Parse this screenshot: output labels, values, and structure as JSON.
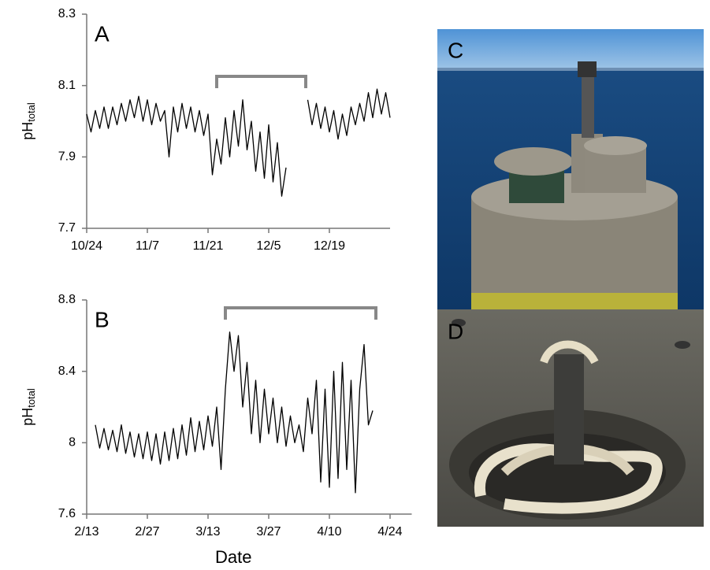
{
  "chart_data": [
    {
      "type": "line",
      "panel_label": "A",
      "ylabel": "pH",
      "ylabel_subscript": "total",
      "color": "#000000",
      "xlim": [
        0,
        70
      ],
      "ylim": [
        7.7,
        8.3
      ],
      "xticks": [
        {
          "value": 0,
          "label": "10/24"
        },
        {
          "value": 14,
          "label": "11/7"
        },
        {
          "value": 28,
          "label": "11/21"
        },
        {
          "value": 42,
          "label": "12/5"
        },
        {
          "value": 56,
          "label": "12/19"
        }
      ],
      "yticks": [
        7.7,
        7.9,
        8.1,
        8.3
      ],
      "x": [
        0,
        1,
        2,
        3,
        4,
        5,
        6,
        7,
        8,
        9,
        10,
        11,
        12,
        13,
        14,
        15,
        16,
        17,
        18,
        19,
        20,
        21,
        22,
        23,
        24,
        25,
        26,
        27,
        28,
        29,
        30,
        31,
        32,
        33,
        34,
        35,
        36,
        37,
        38,
        39,
        40,
        41,
        42,
        43,
        44,
        45,
        46,
        47,
        48,
        49,
        50,
        51,
        52,
        53,
        54,
        55,
        56,
        57,
        58,
        59,
        60,
        61,
        62,
        63,
        64,
        65,
        66,
        67,
        68,
        69,
        70
      ],
      "values": [
        8.02,
        7.97,
        8.03,
        7.98,
        8.04,
        7.98,
        8.04,
        7.99,
        8.05,
        8.0,
        8.06,
        8.01,
        8.07,
        8.0,
        8.06,
        7.99,
        8.05,
        8.0,
        8.03,
        7.9,
        8.04,
        7.97,
        8.05,
        7.98,
        8.04,
        7.97,
        8.03,
        7.96,
        8.02,
        7.85,
        7.95,
        7.88,
        8.01,
        7.9,
        8.03,
        7.93,
        8.06,
        7.92,
        8.0,
        7.86,
        7.97,
        7.84,
        7.99,
        7.83,
        7.94,
        7.79,
        7.87,
        null,
        null,
        null,
        null,
        8.06,
        7.99,
        8.05,
        7.98,
        8.04,
        7.97,
        8.03,
        7.95,
        8.02,
        7.96,
        8.04,
        7.99,
        8.05,
        8.0,
        8.08,
        8.01,
        8.09,
        8.02,
        8.08,
        8.01
      ]
    },
    {
      "type": "line",
      "panel_label": "B",
      "ylabel": "pH",
      "ylabel_subscript": "total",
      "xlabel": "Date",
      "color": "#000000",
      "xlim": [
        0,
        75
      ],
      "ylim": [
        7.6,
        8.8
      ],
      "xticks": [
        {
          "value": 0,
          "label": "2/13"
        },
        {
          "value": 14,
          "label": "2/27"
        },
        {
          "value": 28,
          "label": "3/13"
        },
        {
          "value": 42,
          "label": "3/27"
        },
        {
          "value": 56,
          "label": "4/10"
        },
        {
          "value": 70,
          "label": "4/24"
        }
      ],
      "yticks": [
        7.6,
        8,
        8.4,
        8.8
      ],
      "x": [
        2,
        3,
        4,
        5,
        6,
        7,
        8,
        9,
        10,
        11,
        12,
        13,
        14,
        15,
        16,
        17,
        18,
        19,
        20,
        21,
        22,
        23,
        24,
        25,
        26,
        27,
        28,
        29,
        30,
        31,
        32,
        33,
        34,
        35,
        36,
        37,
        38,
        39,
        40,
        41,
        42,
        43,
        44,
        45,
        46,
        47,
        48,
        49,
        50,
        51,
        52,
        53,
        54,
        55,
        56,
        57,
        58,
        59,
        60,
        61,
        62,
        63,
        64,
        65,
        66
      ],
      "values": [
        8.1,
        7.97,
        8.08,
        7.96,
        8.07,
        7.95,
        8.1,
        7.94,
        8.06,
        7.92,
        8.05,
        7.91,
        8.06,
        7.9,
        8.05,
        7.88,
        8.06,
        7.9,
        8.08,
        7.91,
        8.1,
        7.93,
        8.14,
        7.95,
        8.12,
        7.96,
        8.15,
        7.98,
        8.2,
        7.85,
        8.3,
        8.62,
        8.4,
        8.6,
        8.2,
        8.45,
        8.05,
        8.35,
        8.0,
        8.3,
        8.05,
        8.25,
        8.0,
        8.2,
        7.98,
        8.15,
        8.0,
        8.1,
        7.95,
        8.25,
        8.05,
        8.35,
        7.78,
        8.3,
        7.75,
        8.4,
        7.8,
        8.45,
        7.85,
        8.35,
        7.72,
        8.3,
        8.55,
        8.1,
        8.18
      ]
    }
  ],
  "photos": [
    {
      "label": "C"
    },
    {
      "label": "D"
    }
  ]
}
